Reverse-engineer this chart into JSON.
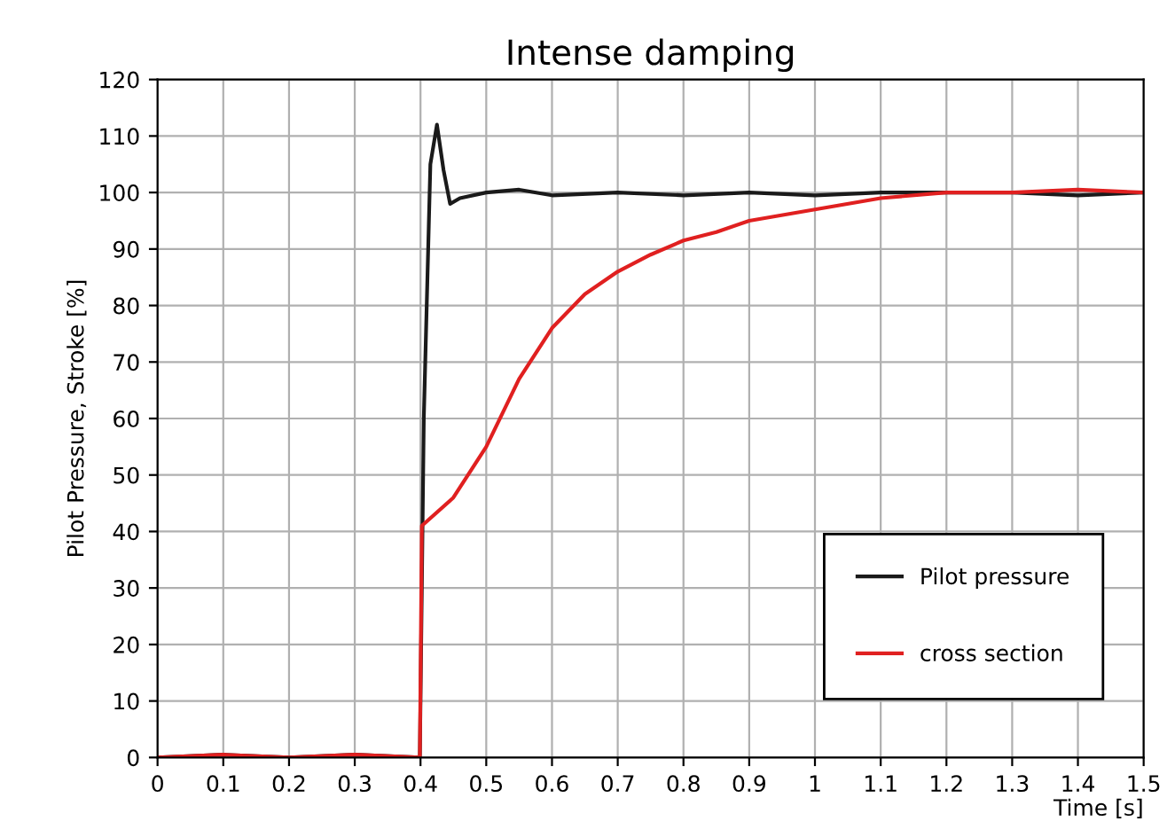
{
  "chart_data": {
    "type": "line",
    "title": "Intense damping",
    "xlabel": "Time [s]",
    "ylabel": "Pilot Pressure, Stroke [%]",
    "xlim": [
      0,
      1.5
    ],
    "ylim": [
      0,
      120
    ],
    "xticks": [
      0,
      0.1,
      0.2,
      0.3,
      0.4,
      0.5,
      0.6,
      0.7,
      0.8,
      0.9,
      1,
      1.1,
      1.2,
      1.3,
      1.4,
      1.5
    ],
    "yticks": [
      0,
      10,
      20,
      30,
      40,
      50,
      60,
      70,
      80,
      90,
      100,
      110,
      120
    ],
    "grid": true,
    "legend": "bottom right",
    "marker": "none",
    "line_style": "solid",
    "series": [
      {
        "name": "Pilot pressure",
        "color": "#1a1a1a",
        "x": [
          0,
          0.1,
          0.2,
          0.3,
          0.399,
          0.405,
          0.415,
          0.425,
          0.435,
          0.445,
          0.46,
          0.5,
          0.55,
          0.6,
          0.7,
          0.8,
          0.9,
          1.0,
          1.1,
          1.2,
          1.3,
          1.4,
          1.5
        ],
        "values": [
          0,
          0.5,
          0,
          0.5,
          0,
          60,
          105,
          112,
          104,
          98,
          99,
          100,
          100.5,
          99.5,
          100,
          99.5,
          100,
          99.5,
          100,
          100,
          100,
          99.5,
          100
        ]
      },
      {
        "name": "cross section",
        "color": "#e02020",
        "x": [
          0,
          0.1,
          0.2,
          0.3,
          0.399,
          0.402,
          0.45,
          0.5,
          0.55,
          0.6,
          0.65,
          0.7,
          0.75,
          0.8,
          0.85,
          0.9,
          1.0,
          1.1,
          1.2,
          1.3,
          1.4,
          1.5
        ],
        "values": [
          0,
          0.5,
          0,
          0.5,
          0,
          41,
          46,
          55,
          67,
          76,
          82,
          86,
          89,
          91.5,
          93,
          95,
          97,
          99,
          100,
          100,
          100.5,
          100
        ]
      }
    ]
  }
}
